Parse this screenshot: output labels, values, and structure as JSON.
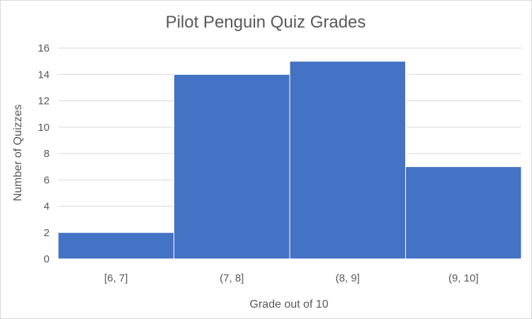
{
  "chart_data": {
    "type": "bar",
    "title": "Pilot Penguin Quiz Grades",
    "xlabel": "Grade out of 10",
    "ylabel": "Number of Quizzes",
    "categories": [
      "[6, 7]",
      "(7, 8]",
      "(8, 9]",
      "(9, 10]"
    ],
    "values": [
      2,
      14,
      15,
      7
    ],
    "ylim": [
      0,
      16
    ],
    "yticks": [
      0,
      2,
      4,
      6,
      8,
      10,
      12,
      14,
      16
    ],
    "grid": true,
    "legend": "none",
    "bar_color": "#4472c4",
    "grid_color": "#d9d9d9"
  }
}
